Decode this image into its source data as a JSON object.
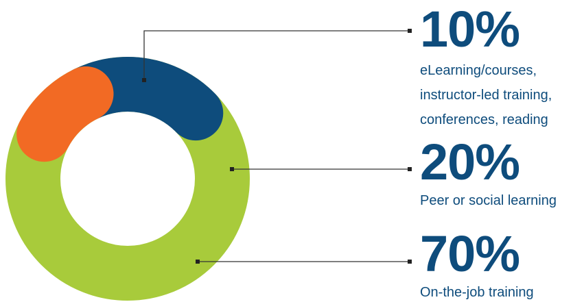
{
  "chart_data": {
    "type": "pie",
    "title": "",
    "slices": [
      {
        "value": 10,
        "value_label": "10%",
        "label_lines": [
          "eLearning/courses,",
          "instructor-led training,",
          "conferences, reading"
        ],
        "color": "#f26a24"
      },
      {
        "value": 20,
        "value_label": "20%",
        "label_lines": [
          "Peer or social learning"
        ],
        "color": "#0e4c7c"
      },
      {
        "value": 70,
        "value_label": "70%",
        "label_lines": [
          "On-the-job training"
        ],
        "color": "#a8cb3b"
      }
    ],
    "text_color": "#0e4c7c",
    "leader_color": "#333333"
  }
}
